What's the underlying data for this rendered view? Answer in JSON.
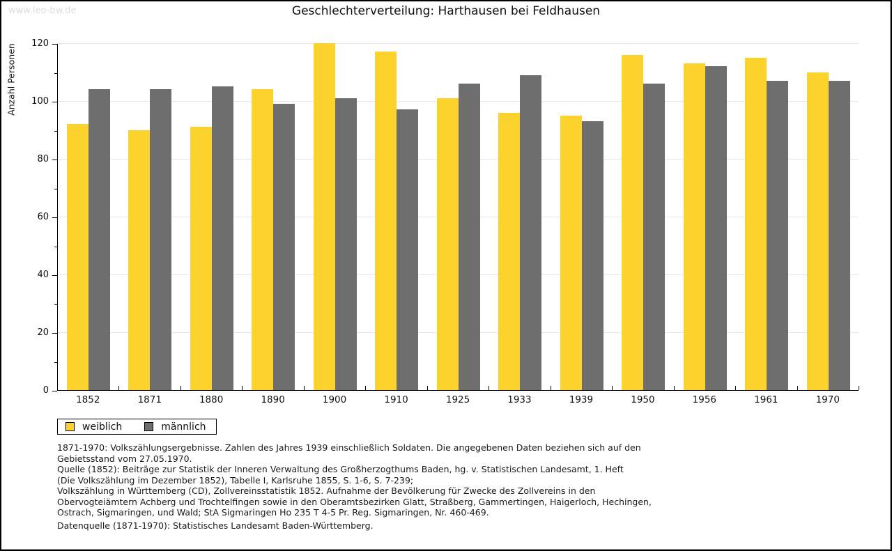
{
  "watermark": {
    "text": "www.leo-bw.de"
  },
  "chart_data": {
    "type": "bar",
    "title": "Geschlechterverteilung: Harthausen bei Feldhausen",
    "xlabel": "",
    "ylabel": "Anzahl Personen",
    "categories": [
      "1852",
      "1871",
      "1880",
      "1890",
      "1900",
      "1910",
      "1925",
      "1933",
      "1939",
      "1950",
      "1956",
      "1961",
      "1970"
    ],
    "series": [
      {
        "name": "weiblich",
        "color": "#fcd32d",
        "values": [
          92,
          90,
          91,
          104,
          120,
          117,
          101,
          96,
          95,
          116,
          113,
          115,
          110
        ]
      },
      {
        "name": "männlich",
        "color": "#6e6e6e",
        "values": [
          104,
          104,
          105,
          99,
          101,
          97,
          106,
          109,
          93,
          106,
          112,
          107,
          107
        ]
      }
    ],
    "ylim": [
      0,
      120
    ],
    "ytick_step": 20,
    "yminortick_step": 10,
    "grid": true,
    "legend_position": "bottom-left"
  },
  "notes": {
    "lines": [
      "1871-1970: Volkszählungsergebnisse. Zahlen des Jahres 1939 einschließlich Soldaten. Die angegebenen Daten beziehen sich auf den",
      "Gebietsstand vom 27.05.1970.",
      "Quelle (1852): Beiträge zur Statistik der Inneren Verwaltung des Großherzogthums Baden, hg. v. Statistischen Landesamt, 1. Heft",
      "(Die Volkszählung im Dezember 1852), Tabelle I, Karlsruhe 1855, S. 1-6, S. 7-239;",
      "Volkszählung in Württemberg (CD), Zollvereinsstatistik 1852. Aufnahme der Bevölkerung für Zwecke des Zollvereins in den",
      "Obervogteiämtern Achberg und Trochtelfingen sowie in den Oberamtsbezirken Glatt, Straßberg, Gammertingen, Haigerloch, Hechingen,",
      "Ostrach, Sigmaringen, und Wald; StA Sigmaringen Ho 235 T 4-5 Pr. Reg. Sigmaringen, Nr. 460-469."
    ],
    "datasource": "Datenquelle (1871-1970): Statistisches Landesamt Baden-Württemberg."
  }
}
